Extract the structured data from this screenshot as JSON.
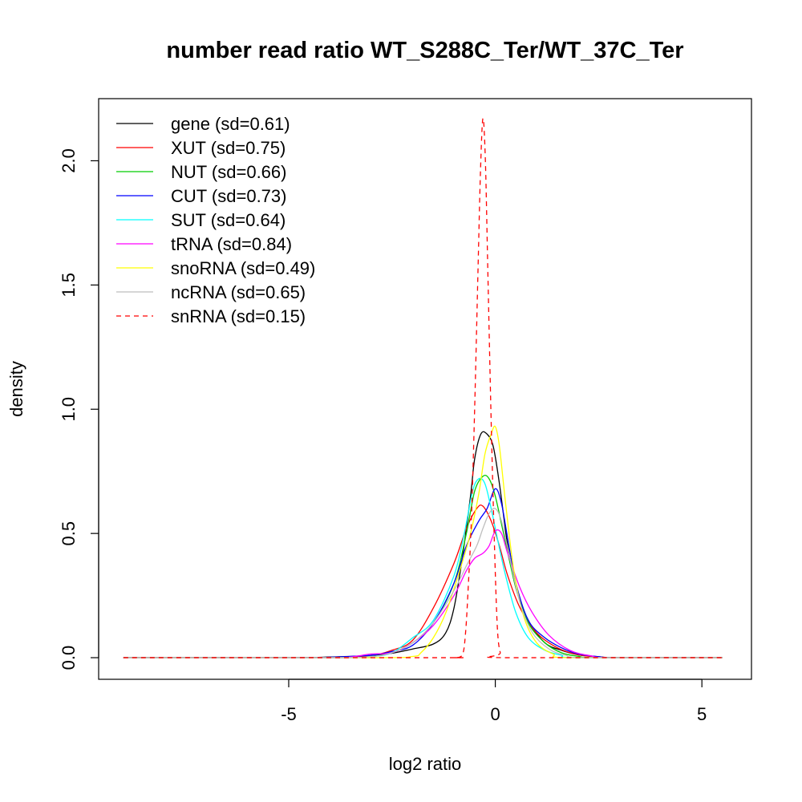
{
  "chart_data": {
    "type": "line",
    "title": "number read ratio WT_S288C_Ter/WT_37C_Ter",
    "xlabel": "log2 ratio",
    "ylabel": "density",
    "xlim": [
      -9.6,
      6.2
    ],
    "ylim": [
      -0.087,
      2.25
    ],
    "x_ticks": [
      -5,
      0,
      5
    ],
    "x_tick_labels": [
      "-5",
      "0",
      "5"
    ],
    "y_ticks": [
      0.0,
      0.5,
      1.0,
      1.5,
      2.0
    ],
    "y_tick_labels": [
      "0.0",
      "0.5",
      "1.0",
      "1.5",
      "2.0"
    ],
    "grid": false,
    "legend_position": "top-left",
    "x_range": [
      -9,
      5.5
    ],
    "series": [
      {
        "name": "gene (sd=0.61)",
        "color": "#000000",
        "dash": "solid",
        "points": [
          [
            -9,
            0
          ],
          [
            -5,
            0
          ],
          [
            -4,
            0.003
          ],
          [
            -3,
            0.008
          ],
          [
            -2.5,
            0.018
          ],
          [
            -2,
            0.035
          ],
          [
            -1.5,
            0.055
          ],
          [
            -1.2,
            0.1
          ],
          [
            -1,
            0.2
          ],
          [
            -0.8,
            0.4
          ],
          [
            -0.6,
            0.65
          ],
          [
            -0.5,
            0.8
          ],
          [
            -0.35,
            0.9
          ],
          [
            -0.2,
            0.9
          ],
          [
            -0.05,
            0.85
          ],
          [
            0.1,
            0.7
          ],
          [
            0.3,
            0.45
          ],
          [
            0.5,
            0.28
          ],
          [
            0.8,
            0.15
          ],
          [
            1.2,
            0.06
          ],
          [
            1.6,
            0.03
          ],
          [
            2,
            0.012
          ],
          [
            2.5,
            0.004
          ],
          [
            3,
            0
          ],
          [
            5.5,
            0
          ]
        ]
      },
      {
        "name": "XUT (sd=0.75)",
        "color": "#ff0000",
        "dash": "solid",
        "points": [
          [
            -9,
            0
          ],
          [
            -4,
            0
          ],
          [
            -3,
            0.01
          ],
          [
            -2.5,
            0.03
          ],
          [
            -2,
            0.07
          ],
          [
            -1.5,
            0.2
          ],
          [
            -1,
            0.38
          ],
          [
            -0.7,
            0.52
          ],
          [
            -0.45,
            0.6
          ],
          [
            -0.3,
            0.61
          ],
          [
            -0.1,
            0.55
          ],
          [
            0.1,
            0.45
          ],
          [
            0.3,
            0.33
          ],
          [
            0.6,
            0.2
          ],
          [
            1,
            0.1
          ],
          [
            1.5,
            0.04
          ],
          [
            2,
            0.012
          ],
          [
            2.5,
            0.003
          ],
          [
            3,
            0
          ],
          [
            5.5,
            0
          ]
        ]
      },
      {
        "name": "NUT (sd=0.66)",
        "color": "#00cd00",
        "dash": "solid",
        "points": [
          [
            -9,
            0
          ],
          [
            -4,
            0
          ],
          [
            -3,
            0.005
          ],
          [
            -2.5,
            0.02
          ],
          [
            -2,
            0.06
          ],
          [
            -1.5,
            0.14
          ],
          [
            -1,
            0.3
          ],
          [
            -0.7,
            0.5
          ],
          [
            -0.5,
            0.67
          ],
          [
            -0.3,
            0.73
          ],
          [
            -0.15,
            0.72
          ],
          [
            0,
            0.65
          ],
          [
            0.2,
            0.5
          ],
          [
            0.5,
            0.28
          ],
          [
            0.8,
            0.14
          ],
          [
            1.2,
            0.06
          ],
          [
            1.6,
            0.02
          ],
          [
            2,
            0.006
          ],
          [
            2.5,
            0
          ],
          [
            5.5,
            0
          ]
        ]
      },
      {
        "name": "CUT (sd=0.73)",
        "color": "#0000ff",
        "dash": "solid",
        "points": [
          [
            -9,
            0
          ],
          [
            -5,
            0
          ],
          [
            -4,
            0.002
          ],
          [
            -3,
            0.01
          ],
          [
            -2.5,
            0.025
          ],
          [
            -2,
            0.05
          ],
          [
            -1.5,
            0.14
          ],
          [
            -1,
            0.3
          ],
          [
            -0.7,
            0.45
          ],
          [
            -0.4,
            0.55
          ],
          [
            -0.2,
            0.6
          ],
          [
            0,
            0.68
          ],
          [
            0.15,
            0.62
          ],
          [
            0.3,
            0.48
          ],
          [
            0.5,
            0.3
          ],
          [
            0.8,
            0.15
          ],
          [
            1.2,
            0.08
          ],
          [
            1.6,
            0.04
          ],
          [
            2,
            0.015
          ],
          [
            2.5,
            0.004
          ],
          [
            3,
            0
          ],
          [
            5.5,
            0
          ]
        ]
      },
      {
        "name": "SUT (sd=0.64)",
        "color": "#00ffff",
        "dash": "solid",
        "points": [
          [
            -9,
            0
          ],
          [
            -4,
            0
          ],
          [
            -3,
            0.005
          ],
          [
            -2.5,
            0.02
          ],
          [
            -2,
            0.08
          ],
          [
            -1.5,
            0.15
          ],
          [
            -1,
            0.33
          ],
          [
            -0.75,
            0.5
          ],
          [
            -0.55,
            0.67
          ],
          [
            -0.4,
            0.72
          ],
          [
            -0.25,
            0.7
          ],
          [
            -0.1,
            0.6
          ],
          [
            0.05,
            0.48
          ],
          [
            0.25,
            0.33
          ],
          [
            0.5,
            0.18
          ],
          [
            0.8,
            0.08
          ],
          [
            1.2,
            0.03
          ],
          [
            1.6,
            0.01
          ],
          [
            2,
            0
          ],
          [
            5.5,
            0
          ]
        ]
      },
      {
        "name": "tRNA (sd=0.84)",
        "color": "#ff00ff",
        "dash": "solid",
        "points": [
          [
            -9,
            0
          ],
          [
            -4,
            0
          ],
          [
            -3.5,
            0.003
          ],
          [
            -3,
            0.015
          ],
          [
            -2.5,
            0.02
          ],
          [
            -2,
            0.06
          ],
          [
            -1.5,
            0.13
          ],
          [
            -1,
            0.25
          ],
          [
            -0.7,
            0.35
          ],
          [
            -0.5,
            0.4
          ],
          [
            -0.3,
            0.42
          ],
          [
            -0.15,
            0.45
          ],
          [
            0,
            0.51
          ],
          [
            0.15,
            0.5
          ],
          [
            0.3,
            0.42
          ],
          [
            0.6,
            0.28
          ],
          [
            0.9,
            0.18
          ],
          [
            1.3,
            0.09
          ],
          [
            1.8,
            0.03
          ],
          [
            2.3,
            0.008
          ],
          [
            2.8,
            0
          ],
          [
            5.5,
            0
          ]
        ]
      },
      {
        "name": "snoRNA (sd=0.49)",
        "color": "#ffff00",
        "dash": "solid",
        "points": [
          [
            -9,
            0
          ],
          [
            -3,
            0
          ],
          [
            -2,
            0.005
          ],
          [
            -1.8,
            0.02
          ],
          [
            -1.5,
            0.08
          ],
          [
            -1.2,
            0.18
          ],
          [
            -0.9,
            0.33
          ],
          [
            -0.6,
            0.5
          ],
          [
            -0.4,
            0.66
          ],
          [
            -0.25,
            0.82
          ],
          [
            -0.1,
            0.9
          ],
          [
            0,
            0.93
          ],
          [
            0.1,
            0.85
          ],
          [
            0.25,
            0.62
          ],
          [
            0.45,
            0.35
          ],
          [
            0.7,
            0.16
          ],
          [
            1,
            0.06
          ],
          [
            1.4,
            0.015
          ],
          [
            1.8,
            0
          ],
          [
            5.5,
            0
          ]
        ]
      },
      {
        "name": "ncRNA (sd=0.65)",
        "color": "#bebebe",
        "dash": "solid",
        "points": [
          [
            -9,
            0
          ],
          [
            -4,
            0
          ],
          [
            -3,
            0.005
          ],
          [
            -2.5,
            0.02
          ],
          [
            -2,
            0.06
          ],
          [
            -1.5,
            0.14
          ],
          [
            -1,
            0.27
          ],
          [
            -0.7,
            0.37
          ],
          [
            -0.45,
            0.45
          ],
          [
            -0.3,
            0.52
          ],
          [
            -0.15,
            0.58
          ],
          [
            0,
            0.6
          ],
          [
            0.15,
            0.55
          ],
          [
            0.35,
            0.4
          ],
          [
            0.6,
            0.22
          ],
          [
            0.9,
            0.1
          ],
          [
            1.3,
            0.035
          ],
          [
            1.7,
            0.01
          ],
          [
            2.2,
            0
          ],
          [
            5.5,
            0
          ]
        ]
      },
      {
        "name": "snRNA (sd=0.15)",
        "color": "#ff0000",
        "dash": "dashed",
        "points": [
          [
            -9,
            0
          ],
          [
            -1.5,
            0
          ],
          [
            -1,
            0
          ],
          [
            -0.8,
            0.01
          ],
          [
            -0.72,
            0.1
          ],
          [
            -0.65,
            0.3
          ],
          [
            -0.58,
            0.55
          ],
          [
            -0.5,
            1.0
          ],
          [
            -0.42,
            1.55
          ],
          [
            -0.36,
            1.95
          ],
          [
            -0.3,
            2.17
          ],
          [
            -0.24,
            2.0
          ],
          [
            -0.18,
            1.55
          ],
          [
            -0.1,
            0.95
          ],
          [
            -0.02,
            0.45
          ],
          [
            0.05,
            0.12
          ],
          [
            0.12,
            0.02
          ],
          [
            0.2,
            0
          ],
          [
            5.5,
            0
          ]
        ]
      }
    ]
  }
}
